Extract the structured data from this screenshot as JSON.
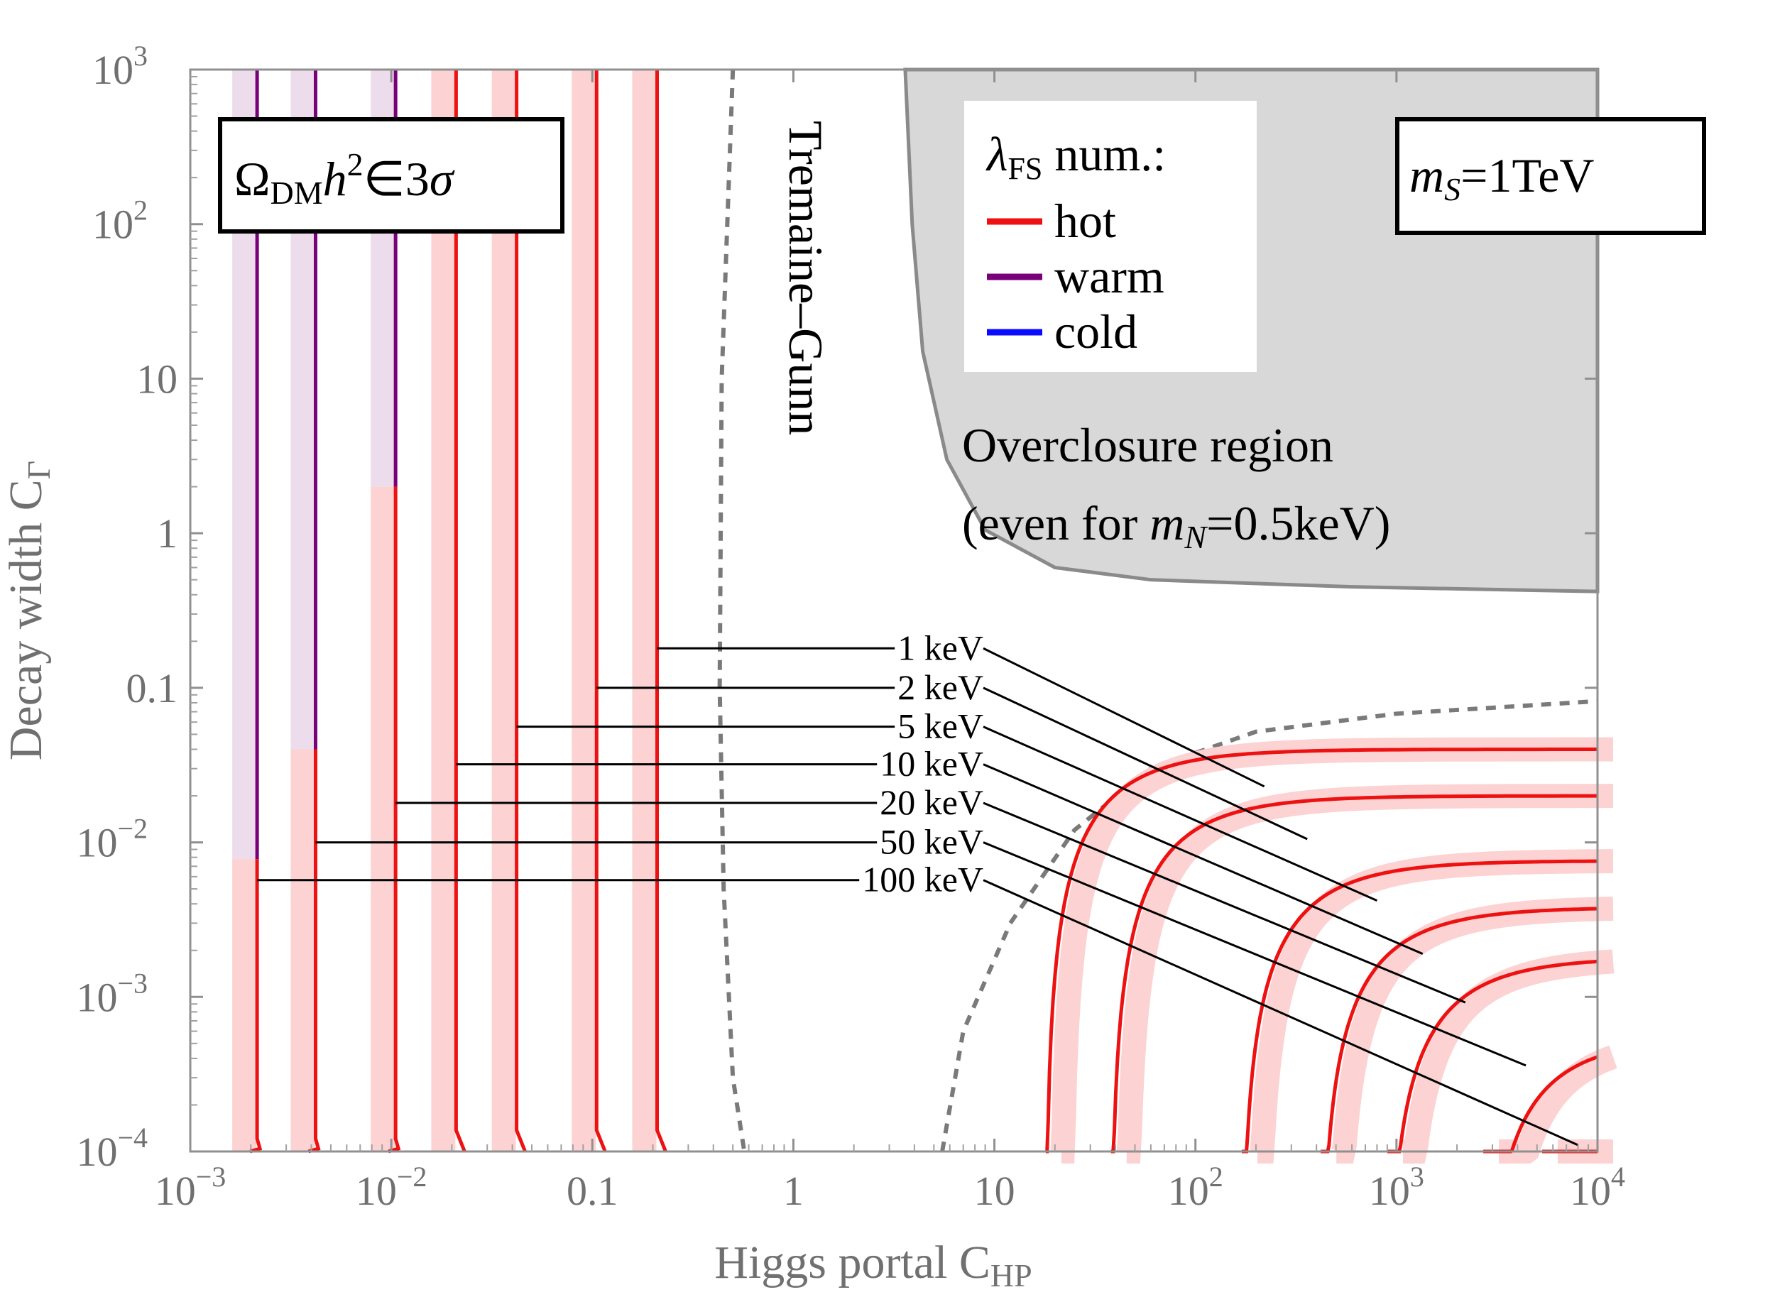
{
  "chart_data": {
    "type": "line",
    "xlabel_main": "Higgs portal C",
    "xlabel_sub": "HP",
    "ylabel_main": "Decay width C",
    "ylabel_sub": "Γ",
    "xscale": "log",
    "yscale": "log",
    "xlim": [
      0.001,
      10000
    ],
    "ylim": [
      0.0001,
      1000
    ],
    "x_ticks": [
      {
        "value": 0.001,
        "base": "10",
        "exp": "−3"
      },
      {
        "value": 0.01,
        "base": "10",
        "exp": "−2"
      },
      {
        "value": 0.1,
        "base": "0.1",
        "exp": ""
      },
      {
        "value": 1,
        "base": "1",
        "exp": ""
      },
      {
        "value": 10,
        "base": "10",
        "exp": ""
      },
      {
        "value": 100,
        "base": "10",
        "exp": "2"
      },
      {
        "value": 1000,
        "base": "10",
        "exp": "3"
      },
      {
        "value": 10000,
        "base": "10",
        "exp": "4"
      }
    ],
    "y_ticks": [
      {
        "value": 0.0001,
        "base": "10",
        "exp": "−4"
      },
      {
        "value": 0.001,
        "base": "10",
        "exp": "−3"
      },
      {
        "value": 0.01,
        "base": "10",
        "exp": "−2"
      },
      {
        "value": 0.1,
        "base": "0.1",
        "exp": ""
      },
      {
        "value": 1,
        "base": "1",
        "exp": ""
      },
      {
        "value": 10,
        "base": "10",
        "exp": ""
      },
      {
        "value": 100,
        "base": "10",
        "exp": "2"
      },
      {
        "value": 1000,
        "base": "10",
        "exp": "3"
      }
    ],
    "legend": {
      "title_main": "λ",
      "title_sub": "FS",
      "title_rest": " num.:",
      "entries": [
        {
          "label": "hot",
          "color": "#ee1111"
        },
        {
          "label": "warm",
          "color": "#7a007a"
        },
        {
          "label": "cold",
          "color": "#0a0aff"
        }
      ]
    },
    "annotations": {
      "relic_box": {
        "omega": "Ω",
        "sub": "DM",
        "h": "h",
        "sup": "2",
        "rest": "∈3",
        "sigma": "σ"
      },
      "mass_box": {
        "m": "m",
        "sub": "S",
        "rest": "=1TeV"
      },
      "tremaine_gunn": "Tremaine–Gunn",
      "overclosure_line1": "Overclosure region",
      "overclosure_line2_a": "(even for ",
      "overclosure_line2_m": "m",
      "overclosure_line2_sub": "N",
      "overclosure_line2_b": "=0.5keV)"
    },
    "mass_labels": [
      "1 keV",
      "2 keV",
      "5 keV",
      "10 keV",
      "20 keV",
      "50 keV",
      "100 keV"
    ],
    "left_contours": [
      {
        "mass": "100 keV",
        "x": 0.00215,
        "warm_below_y": 0.0078
      },
      {
        "mass": "50 keV",
        "x": 0.0042,
        "warm_below_y": 0.04
      },
      {
        "mass": "20 keV",
        "x": 0.0105,
        "warm_below_y": 2
      },
      {
        "mass": "10 keV",
        "x": 0.021,
        "warm_below_y": null
      },
      {
        "mass": "5 keV",
        "x": 0.042,
        "warm_below_y": null
      },
      {
        "mass": "2 keV",
        "x": 0.105,
        "warm_below_y": null
      },
      {
        "mass": "1 keV",
        "x": 0.21,
        "warm_below_y": null
      }
    ],
    "right_contours": [
      {
        "mass": "1 keV",
        "x0": 18,
        "y_asym": 0.04
      },
      {
        "mass": "2 keV",
        "x0": 38,
        "y_asym": 0.02
      },
      {
        "mass": "5 keV",
        "x0": 170,
        "y_asym": 0.0076
      },
      {
        "mass": "10 keV",
        "x0": 420,
        "y_asym": 0.0038
      },
      {
        "mass": "20 keV",
        "x0": 900,
        "y_asym": 0.0018
      },
      {
        "mass": "50 keV",
        "x0": 2700,
        "y_asym": 0.00055
      },
      {
        "mass": "100 keV",
        "x0": 5300,
        "y_asym": 0.00019
      }
    ],
    "label_leaders": [
      {
        "mass": "1 keV",
        "y": 0.18,
        "x_start": 0.21,
        "x_end_right": 220,
        "y_end_right": 0.023
      },
      {
        "mass": "2 keV",
        "y": 0.1,
        "x_start": 0.105,
        "x_end_right": 360,
        "y_end_right": 0.0105
      },
      {
        "mass": "5 keV",
        "y": 0.056,
        "x_start": 0.042,
        "x_end_right": 800,
        "y_end_right": 0.0042
      },
      {
        "mass": "10 keV",
        "y": 0.032,
        "x_start": 0.021,
        "x_end_right": 1350,
        "y_end_right": 0.0019
      },
      {
        "mass": "20 keV",
        "y": 0.018,
        "x_start": 0.0105,
        "x_end_right": 2200,
        "y_end_right": 0.00092
      },
      {
        "mass": "50 keV",
        "y": 0.01,
        "x_start": 0.0042,
        "x_end_right": 4400,
        "y_end_right": 0.00036
      },
      {
        "mass": "100 keV",
        "y": 0.0057,
        "x_start": 0.00215,
        "x_end_right": 8000,
        "y_end_right": 0.00011
      }
    ],
    "tremaine_gunn_boundary_left": [
      [
        0.5,
        1000
      ],
      [
        0.44,
        10
      ],
      [
        0.43,
        0.1
      ],
      [
        0.45,
        0.005
      ],
      [
        0.5,
        0.0003
      ],
      [
        0.57,
        0.0001
      ]
    ],
    "tremaine_gunn_boundary_right": [
      [
        5.5,
        0.0001
      ],
      [
        7,
        0.0006
      ],
      [
        12,
        0.003
      ],
      [
        25,
        0.012
      ],
      [
        60,
        0.03
      ],
      [
        200,
        0.052
      ],
      [
        1000,
        0.068
      ],
      [
        10000,
        0.082
      ]
    ],
    "overclosure_boundary": [
      [
        3.6,
        1000
      ],
      [
        3.9,
        100
      ],
      [
        4.4,
        15
      ],
      [
        5.8,
        3
      ],
      [
        9,
        1.05
      ],
      [
        20,
        0.6
      ],
      [
        60,
        0.5
      ],
      [
        600,
        0.45
      ],
      [
        10000,
        0.42
      ]
    ]
  }
}
